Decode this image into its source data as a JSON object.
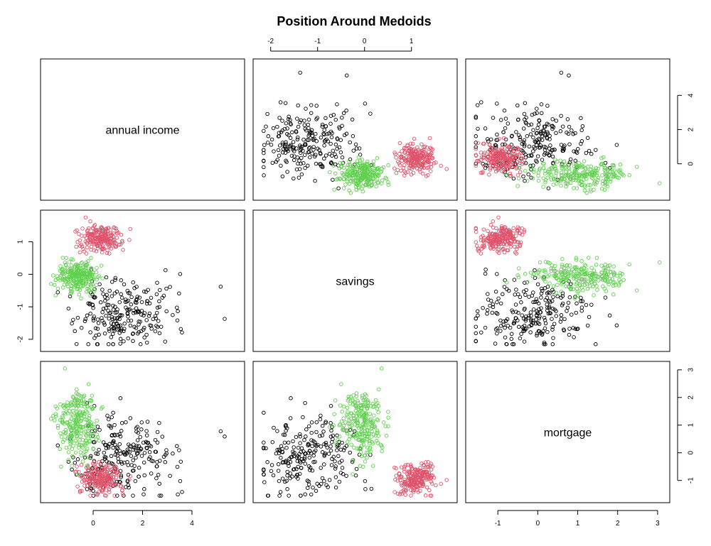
{
  "chart_data": {
    "type": "scatter",
    "title": "Position Around Medoids",
    "variables": [
      "annual income",
      "savings",
      "mortgage"
    ],
    "cluster_colors": [
      "#000000",
      "#df536b",
      "#61d04f"
    ],
    "ranges": {
      "annual income": [
        -1.8,
        5.8
      ],
      "savings": [
        -2.2,
        1.8
      ],
      "mortgage": [
        -1.6,
        3.1
      ]
    },
    "ticks": {
      "annual income": [
        0,
        2,
        4
      ],
      "savings": [
        -2,
        -1,
        0,
        1
      ],
      "mortgage": [
        -1,
        0,
        1,
        2,
        3
      ]
    },
    "axis_sides": {
      "top": "savings",
      "right_row1": "annual income",
      "left_row2": "savings",
      "right_row3": "mortgage",
      "bottom_col1": "annual income",
      "bottom_col3": "mortgage"
    },
    "clusters": [
      {
        "cluster": 1,
        "color": "#000000",
        "count": 230,
        "annual_income": {
          "mean": 0.8,
          "sd": 1.25
        },
        "savings": {
          "mean": -1.2,
          "sd": 0.55
        },
        "mortgage": {
          "mean": -0.1,
          "sd": 0.75
        }
      },
      {
        "cluster": 2,
        "color": "#df536b",
        "count": 210,
        "annual_income": {
          "mean": 0.3,
          "sd": 0.4
        },
        "savings": {
          "mean": 1.1,
          "sd": 0.22
        },
        "mortgage": {
          "mean": -0.95,
          "sd": 0.25
        }
      },
      {
        "cluster": 3,
        "color": "#61d04f",
        "count": 240,
        "annual_income": {
          "mean": -0.6,
          "sd": 0.45
        },
        "savings": {
          "mean": -0.05,
          "sd": 0.25
        },
        "mortgage": {
          "mean": 1.1,
          "sd": 0.6
        }
      }
    ]
  }
}
